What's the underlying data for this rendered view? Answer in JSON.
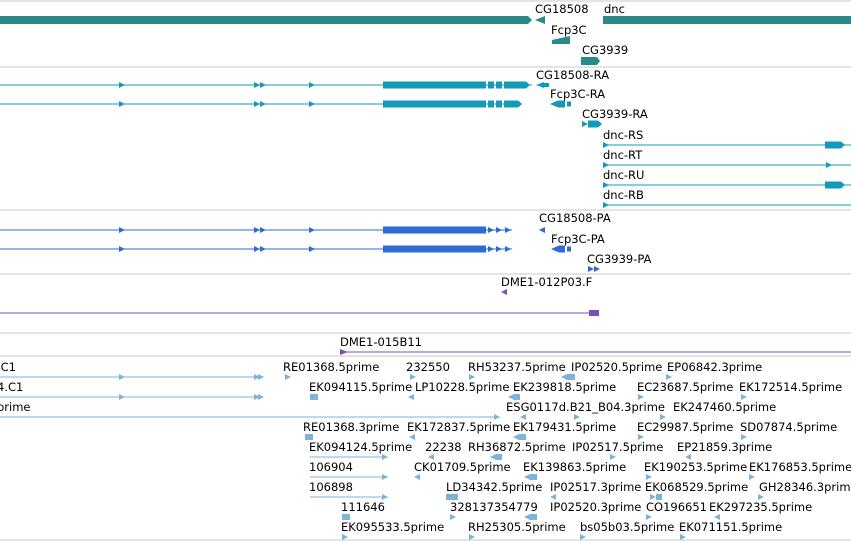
{
  "colors": {
    "gene": "#2a8a8a",
    "transcript": "#139ab8",
    "protein": "#2f6bd0",
    "clone": "#7a52b5",
    "est": "#7db3d9",
    "separator": "#c8c8c8"
  },
  "gene_labels": [
    "CG18508",
    "dnc",
    "Fcp3C",
    "CG3939"
  ],
  "transcript_labels": [
    "CG18508-RA",
    "Fcp3C-RA",
    "CG3939-RA",
    "dnc-RS",
    "dnc-RT",
    "dnc-RU",
    "dnc-RB"
  ],
  "protein_labels": [
    "CG18508-PA",
    "Fcp3C-PA",
    "CG3939-PA"
  ],
  "clone_labels": [
    "DME1-012P03.F",
    "DME1-015B11"
  ],
  "est_rows": [
    [
      ".C1",
      "RE01368.5prime",
      "232550",
      "RH53237.5prime",
      "IP02520.5prime",
      "EP06842.3prime"
    ],
    [
      "4.C1",
      "EK094115.5prime",
      "LP10228.5prime",
      "EK239818.5prime",
      "EC23687.5prime",
      "EK172514.5prime"
    ],
    [
      "prime",
      "ESG0117d.B21_B04.3prime",
      "EK247460.5prime"
    ],
    [
      "RE01368.3prime",
      "EK172837.5prime",
      "EK179431.5prime",
      "EC29987.5prime",
      "SD07874.5prime"
    ],
    [
      "EK094124.5prime",
      "22238",
      "RH36872.5prime",
      "IP02517.5prime",
      "EP21859.3prime"
    ],
    [
      "106904",
      "CK01709.5prime",
      "EK139863.5prime",
      "EK190253.5prime",
      "EK176853.5prime"
    ],
    [
      "106898",
      "LD34342.5prime",
      "IP02517.3prime",
      "EK068529.5prime",
      "GH28346.3prime"
    ],
    [
      "111646",
      "328137354779",
      "IP02520.3prime",
      "CO196651",
      "EK297235.5prime"
    ],
    [
      "EK095533.5prime",
      "RH25305.5prime",
      "bs05b03.5prime",
      "EK071151.5prime"
    ]
  ]
}
